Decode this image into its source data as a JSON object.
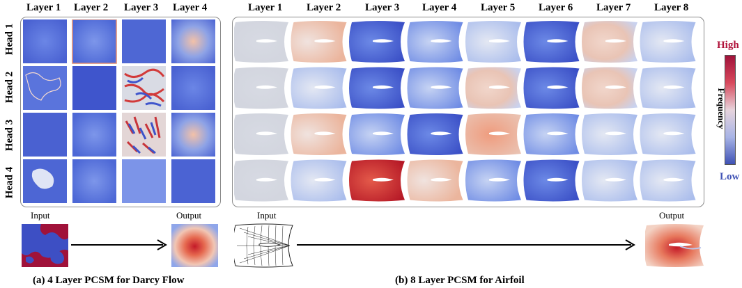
{
  "darcy": {
    "layers": [
      "Layer 1",
      "Layer 2",
      "Layer 3",
      "Layer 4"
    ],
    "heads": [
      "Head 1",
      "Head 2",
      "Head 3",
      "Head 4"
    ],
    "input_label": "Input",
    "output_label": "Output",
    "caption": "(a) 4 Layer PCSM for Darcy Flow"
  },
  "airfoil": {
    "layers": [
      "Layer 1",
      "Layer 2",
      "Layer 3",
      "Layer 4",
      "Layer 5",
      "Layer 6",
      "Layer 7",
      "Layer 8"
    ],
    "input_label": "Input",
    "output_label": "Output",
    "caption": "(b) 8 Layer PCSM for Airfoil"
  },
  "colorbar": {
    "high": "High",
    "low": "Low",
    "title": "Frequency",
    "high_color": "#b0123a",
    "low_color": "#3f52b5"
  }
}
